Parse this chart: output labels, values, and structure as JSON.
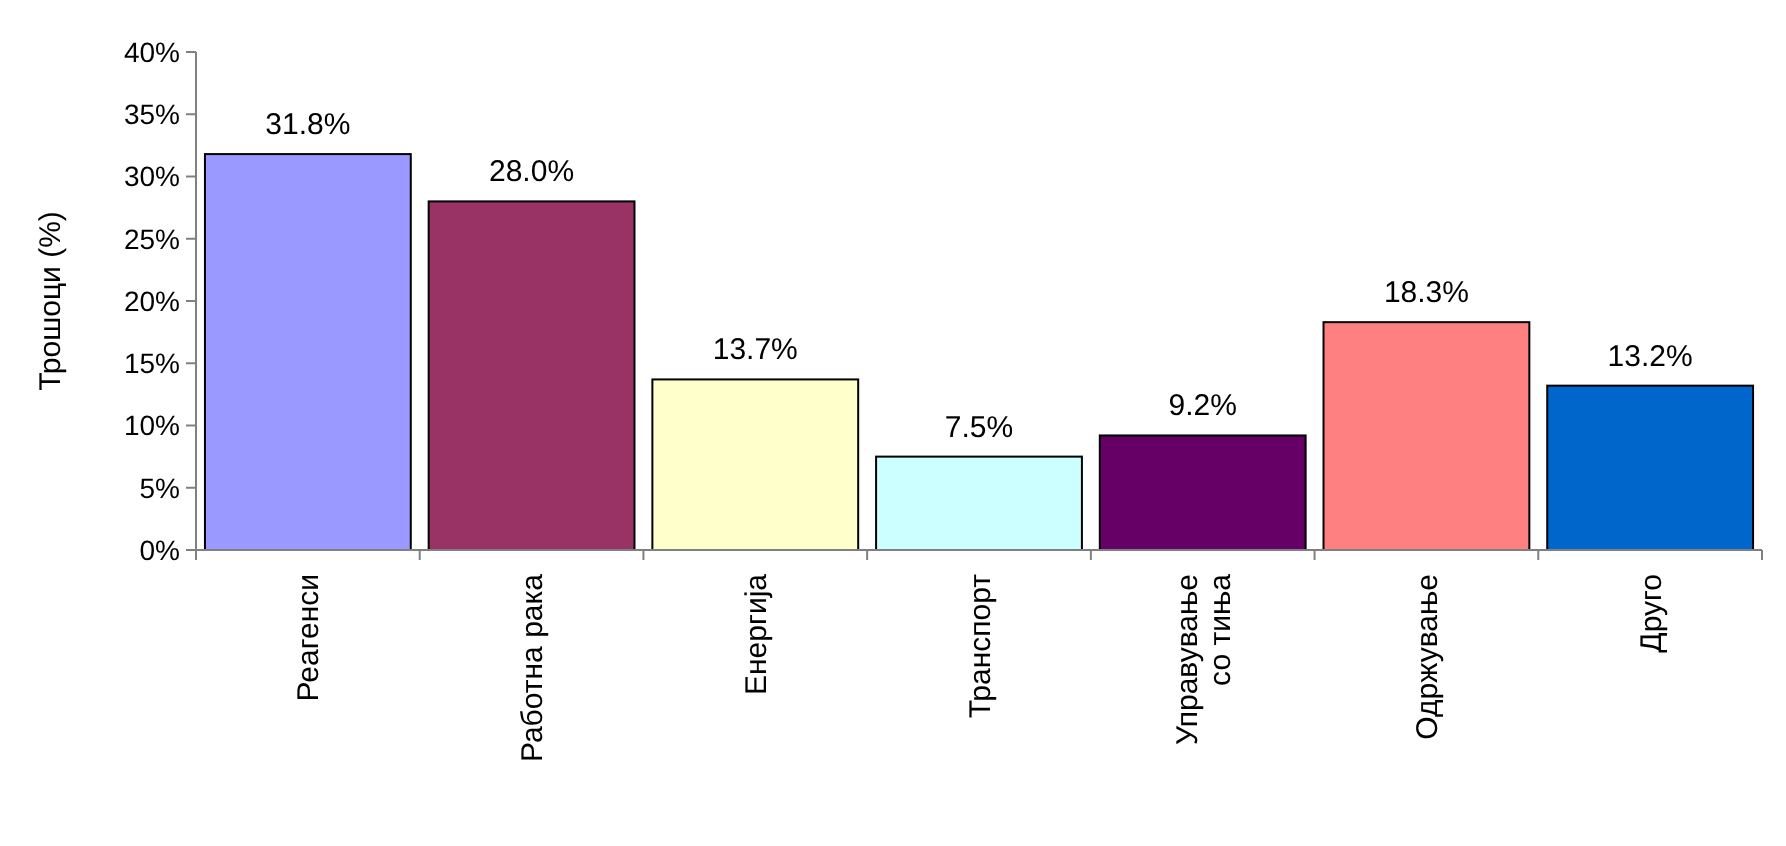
{
  "chart_data": {
    "type": "bar",
    "ylabel": "Трошоци (%)",
    "categories": [
      "Реагенси",
      "Работна рака",
      "Енергија",
      "Транспорт",
      "Управување со тиња",
      "Одржување",
      "Друго"
    ],
    "values": [
      31.8,
      28.0,
      13.7,
      7.5,
      9.2,
      18.3,
      13.2
    ],
    "colors": [
      "#9999ff",
      "#993366",
      "#ffffcc",
      "#ccffff",
      "#660066",
      "#ff8080",
      "#0066cc"
    ],
    "value_labels": [
      "31.8%",
      "28.0%",
      "13.7%",
      "7.5%",
      "9.2%",
      "18.3%",
      "13.2%"
    ],
    "ylim": [
      0,
      40
    ],
    "yticks": [
      {
        "value": 0,
        "label": "0%"
      },
      {
        "value": 5,
        "label": "5%"
      },
      {
        "value": 10,
        "label": "10%"
      },
      {
        "value": 15,
        "label": "15%"
      },
      {
        "value": 20,
        "label": "20%"
      },
      {
        "value": 25,
        "label": "25%"
      },
      {
        "value": 30,
        "label": "30%"
      },
      {
        "value": 35,
        "label": "35%"
      },
      {
        "value": 40,
        "label": "40%"
      }
    ],
    "grid": false
  }
}
